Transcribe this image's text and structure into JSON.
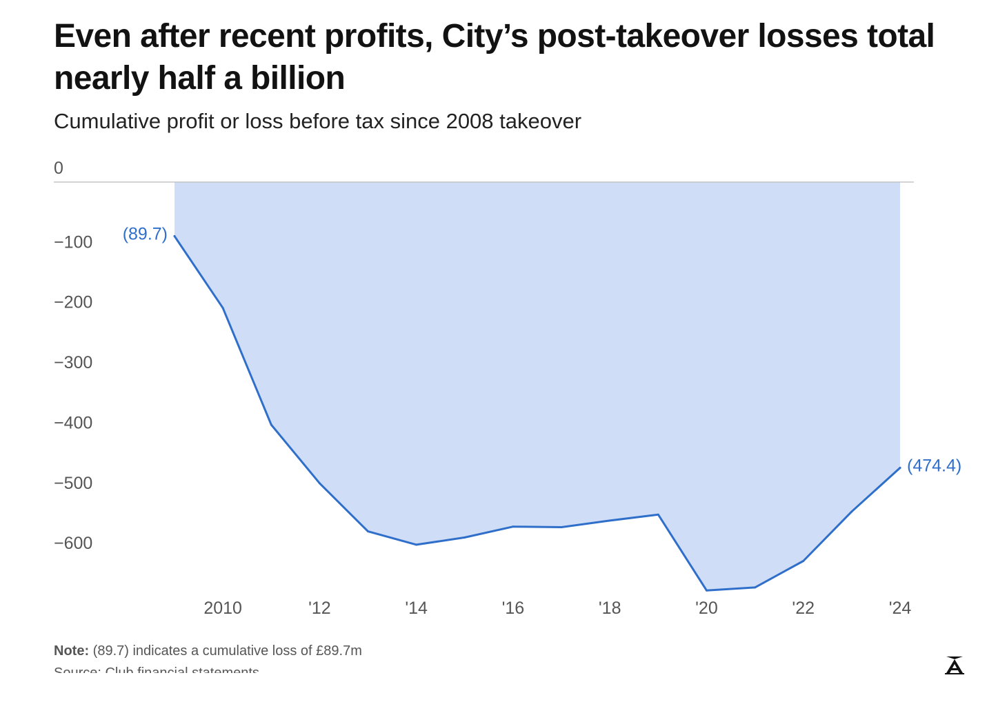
{
  "header": {
    "title": "Even after recent profits, City’s post-takeover losses total nearly half a billion",
    "subtitle": "Cumulative profit or loss before tax since 2008 takeover"
  },
  "footer": {
    "note_label": "Note:",
    "note_text": " (89.7) indicates a cumulative loss of £89.7m",
    "source_text": "Source: Club financial statements"
  },
  "colors": {
    "line": "#2f6fca",
    "area": "#cfddf6",
    "label": "#2f6fca",
    "axis_text": "#555555",
    "zero_line": "#bbbbbb"
  },
  "chart_data": {
    "type": "area",
    "title": "Even after recent profits, City’s post-takeover losses total nearly half a billion",
    "subtitle": "Cumulative profit or loss before tax since 2008 takeover",
    "x": [
      2009,
      2010,
      2011,
      2012,
      2013,
      2014,
      2015,
      2016,
      2017,
      2018,
      2019,
      2020,
      2021,
      2022,
      2023,
      2024
    ],
    "series": [
      {
        "values": [
          -89.7,
          -209,
          -403,
          -500,
          -580,
          -602,
          -590,
          -572,
          -573,
          -562,
          -552,
          -678,
          -673,
          -629,
          -547,
          -474.4
        ]
      }
    ],
    "xlim": [
      2009,
      2024
    ],
    "ylim": [
      -680,
      0
    ],
    "yticks": [
      0,
      -100,
      -200,
      -300,
      -400,
      -500,
      -600
    ],
    "ytick_labels": [
      "0",
      "−100",
      "−200",
      "−300",
      "−400",
      "−500",
      "−600"
    ],
    "xticks": [
      2010,
      2012,
      2014,
      2016,
      2018,
      2020,
      2022,
      2024
    ],
    "xtick_labels": [
      "2010",
      "'12",
      "'14",
      "'16",
      "'18",
      "'20",
      "'22",
      "'24"
    ],
    "annotations": [
      {
        "x": 2009,
        "y": -89.7,
        "text": "(89.7)",
        "side": "left"
      },
      {
        "x": 2024,
        "y": -474.4,
        "text": "(474.4)",
        "side": "right"
      }
    ],
    "grid": false,
    "legend": "none"
  }
}
